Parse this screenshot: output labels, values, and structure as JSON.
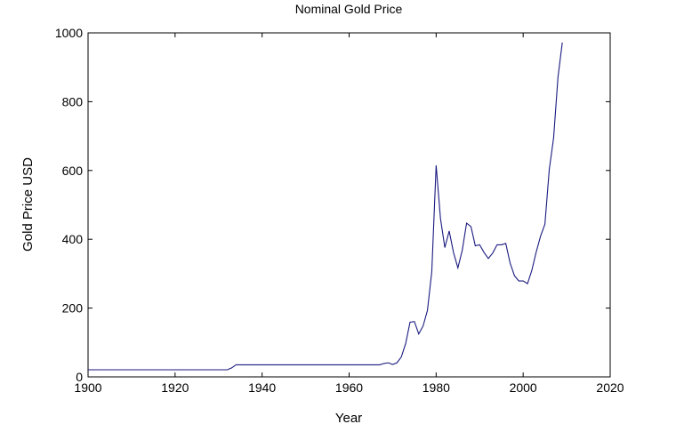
{
  "chart_data": {
    "type": "line",
    "title": "Nominal Gold Price",
    "xlabel": "Year",
    "ylabel": "Gold Price USD",
    "xlim": [
      1900,
      2020
    ],
    "ylim": [
      0,
      1000
    ],
    "xticks": [
      "1900",
      "1920",
      "1940",
      "1960",
      "1980",
      "2000",
      "2020"
    ],
    "yticks": [
      "0",
      "200",
      "400",
      "600",
      "800",
      "1000"
    ],
    "grid": false,
    "line_color": "#1a1a80",
    "series": [
      {
        "x": [
          1900,
          1932,
          1933,
          1934,
          1967,
          1968,
          1969,
          1970,
          1971,
          1972,
          1973,
          1974,
          1975,
          1976,
          1977,
          1978,
          1979,
          1980,
          1981,
          1982,
          1983,
          1984,
          1985,
          1986,
          1987,
          1988,
          1989,
          1990,
          1991,
          1992,
          1993,
          1994,
          1995,
          1996,
          1997,
          1998,
          1999,
          2000,
          2001,
          2002,
          2003,
          2004,
          2005,
          2006,
          2007,
          2008,
          2009
        ],
        "y": [
          20.67,
          20.67,
          26,
          35,
          35,
          39,
          41,
          36,
          41,
          58,
          97,
          159,
          161,
          125,
          148,
          193,
          306,
          615,
          460,
          376,
          424,
          361,
          317,
          368,
          447,
          437,
          381,
          384,
          362,
          344,
          360,
          384,
          384,
          388,
          331,
          294,
          279,
          279,
          271,
          310,
          363,
          409,
          444,
          603,
          695,
          871,
          972
        ]
      }
    ]
  }
}
